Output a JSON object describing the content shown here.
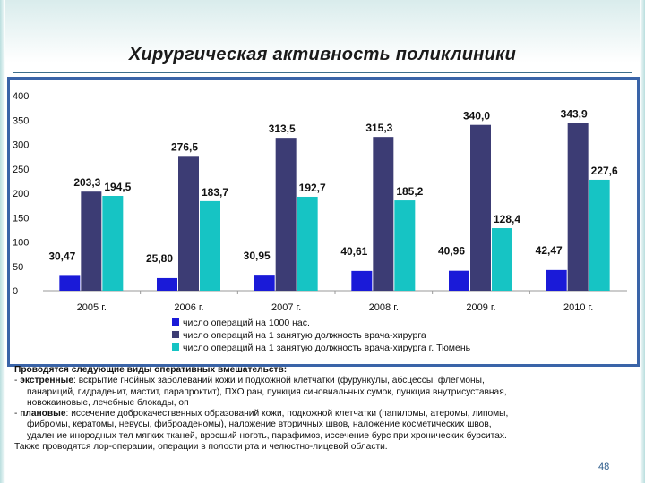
{
  "title": "Хирургическая активность поликлиники",
  "chart_data": {
    "type": "bar",
    "categories": [
      "2005 г.",
      "2006 г.",
      "2007 г.",
      "2008 г.",
      "2009 г.",
      "2010 г."
    ],
    "series": [
      {
        "name": "число операций на 1000 нас.",
        "values": [
          30.47,
          25.8,
          30.95,
          40.61,
          40.96,
          42.47
        ],
        "labels": [
          "30,47",
          "25,80",
          "30,95",
          "40,61",
          "40,96",
          "42,47"
        ],
        "color": "#1a1ad8"
      },
      {
        "name": "число операций на 1 занятую должность врача-хирурга",
        "values": [
          203.3,
          276.5,
          313.5,
          315.3,
          340.0,
          343.9
        ],
        "labels": [
          "203,3",
          "276,5",
          "313,5",
          "315,3",
          "340,0",
          "343,9"
        ],
        "color": "#3c3c74"
      },
      {
        "name": "число операций на 1 занятую должность врача-хирурга г. Тюмень",
        "values": [
          194.5,
          183.7,
          192.7,
          185.2,
          128.4,
          227.6
        ],
        "labels": [
          "194,5",
          "183,7",
          "192,7",
          "185,2",
          "128,4",
          "227,6"
        ],
        "color": "#16c4c4"
      }
    ],
    "ylim": [
      0,
      400
    ],
    "yticks": [
      "0",
      "50",
      "100",
      "150",
      "200",
      "250",
      "300",
      "350",
      "400"
    ],
    "legend_position": "bottom",
    "grid": false
  },
  "body": {
    "heading": "Проводятся следующие виды оперативных вмешательств:",
    "emergency_label": "экстренные",
    "emergency_text": ": вскрытие гнойных заболеваний кожи и подкожной клетчатки (фурункулы, абсцессы, флегмоны,",
    "emergency_line2": "панариций, гидраденит, мастит, парапроктит), ПХО ран, пункция синовиальных сумок, пункция внутрисуставная,",
    "emergency_line3": "новокаиновые, лечебные блокады, оп",
    "planned_label": "плановые",
    "planned_text": ": иссечение доброкачественных образований кожи, подкожной клетчатки (папиломы, атеромы, липомы,",
    "planned_line2": "фибромы, кератомы, невусы, фиброаденомы), наложение вторичных швов, наложение косметических швов,",
    "planned_line3": "удаление инородных тел мягких тканей, вросший ноготь, парафимоз, иссечение бурс при хронических бурситах.",
    "footer_line": "Также проводятся лор-операции, операции в полости рта и челюстно-лицевой области."
  },
  "page_number": "48"
}
